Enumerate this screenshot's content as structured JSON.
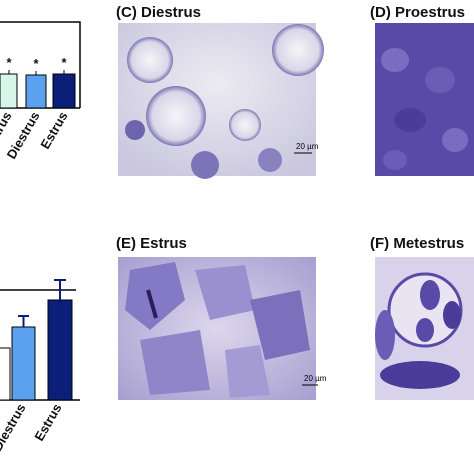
{
  "panels": [
    {
      "label": "(C)",
      "title": "Diestrus",
      "scale_bar": "20 µm"
    },
    {
      "label": "(D)",
      "title": "Proestrus"
    },
    {
      "label": "(E)",
      "title": "Estrus",
      "scale_bar": "20 µm"
    },
    {
      "label": "(F)",
      "title": "Metestrus"
    }
  ],
  "top_chart": {
    "significance": [
      "*",
      "*",
      "*"
    ],
    "categories": [
      "Metestrus",
      "Diestrus",
      "Estrus"
    ]
  },
  "bottom_chart": {
    "categories": [
      "Diestrus",
      "Estrus"
    ]
  }
}
